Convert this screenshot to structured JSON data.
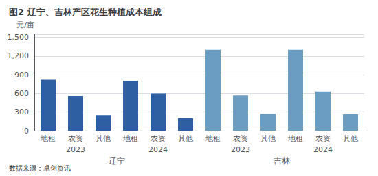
{
  "chart_data": {
    "type": "bar",
    "title": "图2 辽宁、吉林产区花生种植成本组成",
    "ylabel": "元/亩",
    "footer": "数据来源：卓创资讯",
    "categories": [
      [
        "地租",
        "2023",
        "辽宁"
      ],
      [
        "农资",
        "2023",
        "辽宁"
      ],
      [
        "其他",
        "2023",
        "辽宁"
      ],
      [
        "地租",
        "2024",
        "辽宁"
      ],
      [
        "农资",
        "2024",
        "辽宁"
      ],
      [
        "其他",
        "2024",
        "辽宁"
      ],
      [
        "地租",
        "2023",
        "吉林"
      ],
      [
        "农资",
        "2023",
        "吉林"
      ],
      [
        "其他",
        "2023",
        "吉林"
      ],
      [
        "地租",
        "2024",
        "吉林"
      ],
      [
        "农资",
        "2024",
        "吉林"
      ],
      [
        "其他",
        "2024",
        "吉林"
      ]
    ],
    "values": [
      820,
      560,
      250,
      800,
      600,
      200,
      1300,
      570,
      270,
      1300,
      630,
      265
    ],
    "colors": [
      "#2e5fa3",
      "#2e5fa3",
      "#2e5fa3",
      "#2e5fa3",
      "#2e5fa3",
      "#2e5fa3",
      "#6b9dc2",
      "#6b9dc2",
      "#6b9dc2",
      "#6b9dc2",
      "#6b9dc2",
      "#6b9dc2"
    ],
    "ylim": [
      0,
      1550
    ],
    "yticks": [
      0,
      300,
      600,
      900,
      1200,
      1500
    ],
    "grid": true
  }
}
